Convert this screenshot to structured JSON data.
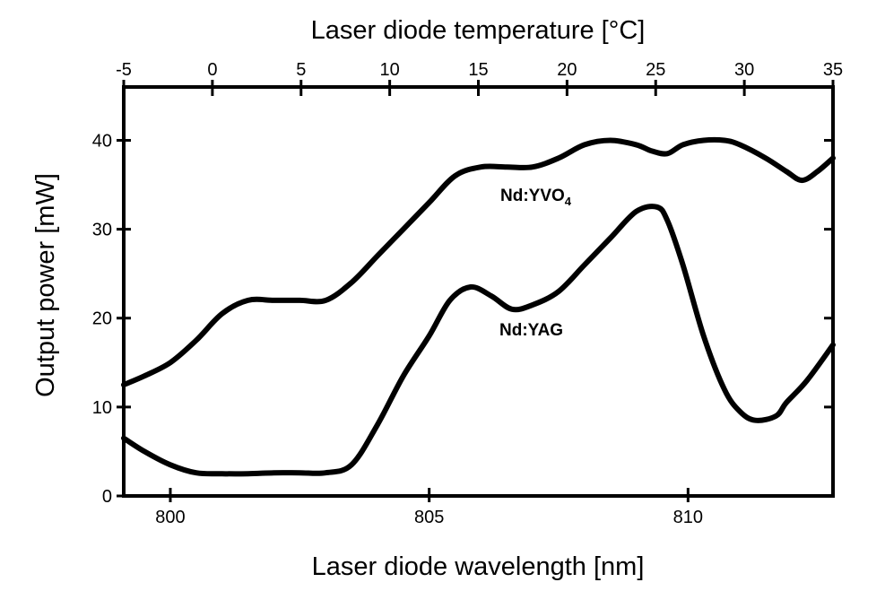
{
  "chart_data": {
    "type": "line",
    "xlabel": "Laser diode wavelength [nm]",
    "ylabel": "Output power [mW]",
    "x2label": "Laser diode temperature [°C]",
    "xlim": [
      799.1,
      812.8
    ],
    "ylim": [
      0,
      46
    ],
    "x2lim": [
      -5,
      35
    ],
    "x_ticks": [
      800,
      805,
      810
    ],
    "y_ticks": [
      0,
      10,
      20,
      30,
      40
    ],
    "x2_ticks": [
      -5,
      0,
      5,
      10,
      15,
      20,
      25,
      30,
      35
    ],
    "grid": false,
    "legend": "none",
    "series": [
      {
        "name": "Nd:YVO",
        "name_subscript": "4",
        "x": [
          799.1,
          799.5,
          800.0,
          800.5,
          801.0,
          801.5,
          802.0,
          802.5,
          803.0,
          803.5,
          804.0,
          804.5,
          805.0,
          805.5,
          806.0,
          806.5,
          807.0,
          807.5,
          808.0,
          808.5,
          809.0,
          809.3,
          809.6,
          809.9,
          810.3,
          810.7,
          811.0,
          811.5,
          811.9,
          812.2,
          812.5,
          812.8
        ],
        "y": [
          12.5,
          13.5,
          15.0,
          17.5,
          20.5,
          22.0,
          22.0,
          22.0,
          22.0,
          24.0,
          27.0,
          30.0,
          33.0,
          36.0,
          37.0,
          37.0,
          37.0,
          38.0,
          39.5,
          40.0,
          39.5,
          38.8,
          38.5,
          39.5,
          40.0,
          40.0,
          39.5,
          38.0,
          36.5,
          35.5,
          36.5,
          38.0
        ]
      },
      {
        "name": "Nd:YAG",
        "x": [
          799.1,
          799.5,
          800.0,
          800.5,
          801.0,
          801.5,
          802.0,
          802.5,
          803.0,
          803.5,
          804.0,
          804.5,
          805.0,
          805.4,
          805.8,
          806.2,
          806.6,
          807.0,
          807.5,
          808.0,
          808.5,
          809.0,
          809.4,
          809.6,
          809.9,
          810.3,
          810.7,
          811.0,
          811.3,
          811.7,
          811.9,
          812.3,
          812.8
        ],
        "y": [
          6.5,
          5.0,
          3.5,
          2.6,
          2.5,
          2.5,
          2.6,
          2.6,
          2.6,
          3.5,
          8.0,
          13.5,
          18.0,
          22.0,
          23.5,
          22.5,
          21.0,
          21.5,
          23.0,
          26.0,
          29.0,
          32.0,
          32.5,
          31.0,
          26.0,
          18.0,
          12.0,
          9.5,
          8.5,
          9.0,
          10.5,
          13.0,
          17.0
        ]
      }
    ]
  }
}
